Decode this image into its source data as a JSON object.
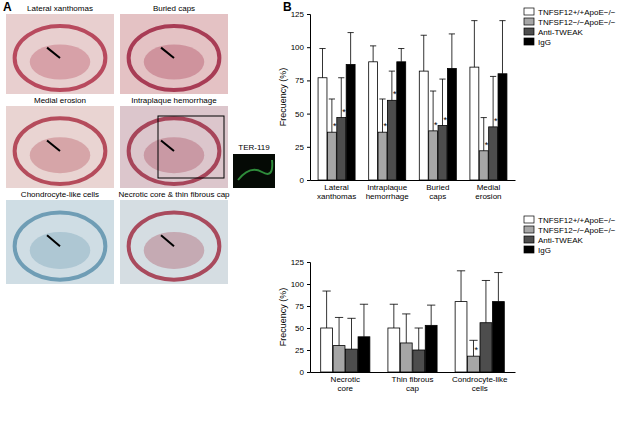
{
  "panel_a": {
    "label": "A",
    "images": [
      "Lateral xanthomas",
      "Buried caps",
      "Medial erosion",
      "Intraplaque hemorrhage",
      "Chondrocyte-like cells",
      "Necrotic core & thin fibrous cap"
    ],
    "inset_label": "TER-119"
  },
  "panel_b": {
    "label": "B"
  },
  "chart_data": [
    {
      "type": "bar",
      "y_label": "Frecuency (%)",
      "categories": [
        "Lateral\nxanthomas",
        "Intraplaque\nhemorrhage",
        "Buried\ncaps",
        "Medial\nerosion"
      ],
      "series": [
        {
          "name": "TNFSF12+/+ApoE−/−",
          "color": "#ffffff",
          "values": [
            77,
            89,
            82,
            85
          ],
          "errors": [
            22,
            12,
            27,
            35
          ],
          "annotations": [
            null,
            null,
            null,
            null
          ]
        },
        {
          "name": "TNFSF12−/−ApoE−/−",
          "color": "#a6a6a6",
          "values": [
            36,
            36,
            37,
            22
          ],
          "errors": [
            25,
            25,
            30,
            25
          ],
          "annotations": [
            "*",
            "*",
            "*",
            "*"
          ]
        },
        {
          "name": "Anti-TWEAK",
          "color": "#4d4d4d",
          "values": [
            47,
            60,
            41,
            40
          ],
          "errors": [
            30,
            22,
            35,
            38
          ],
          "annotations": [
            "*†",
            "*†",
            "*†",
            "*†"
          ]
        },
        {
          "name": "IgG",
          "color": "#000000",
          "values": [
            87,
            89,
            84,
            80
          ],
          "errors": [
            24,
            10,
            26,
            40
          ],
          "annotations": [
            null,
            null,
            null,
            null
          ]
        }
      ],
      "ylim": [
        0,
        125
      ],
      "yticks": [
        0,
        25,
        50,
        75,
        100,
        125
      ],
      "grid": false,
      "legend": "right"
    },
    {
      "type": "bar",
      "y_label": "Frecuency (%)",
      "categories": [
        "Necrotic\ncore",
        "Thin fibrous\ncap",
        "Condrocyte-like\ncells"
      ],
      "series": [
        {
          "name": "TNFSF12+/+ApoE−/−",
          "color": "#ffffff",
          "values": [
            50,
            50,
            80
          ],
          "errors": [
            42,
            27,
            35
          ],
          "annotations": [
            null,
            null,
            null
          ]
        },
        {
          "name": "TNFSF12−/−ApoE−/−",
          "color": "#a6a6a6",
          "values": [
            30,
            33,
            18
          ],
          "errors": [
            32,
            33,
            18
          ],
          "annotations": [
            null,
            null,
            "*"
          ]
        },
        {
          "name": "Anti-TWEAK",
          "color": "#4d4d4d",
          "values": [
            26,
            25,
            56
          ],
          "errors": [
            35,
            25,
            48
          ],
          "annotations": [
            null,
            null,
            null
          ]
        },
        {
          "name": "IgG",
          "color": "#000000",
          "values": [
            40,
            53,
            80
          ],
          "errors": [
            37,
            23,
            33
          ],
          "annotations": [
            null,
            null,
            null
          ]
        }
      ],
      "ylim": [
        0,
        125
      ],
      "yticks": [
        0,
        25,
        50,
        75,
        100,
        125
      ],
      "grid": false,
      "legend": "right"
    }
  ]
}
